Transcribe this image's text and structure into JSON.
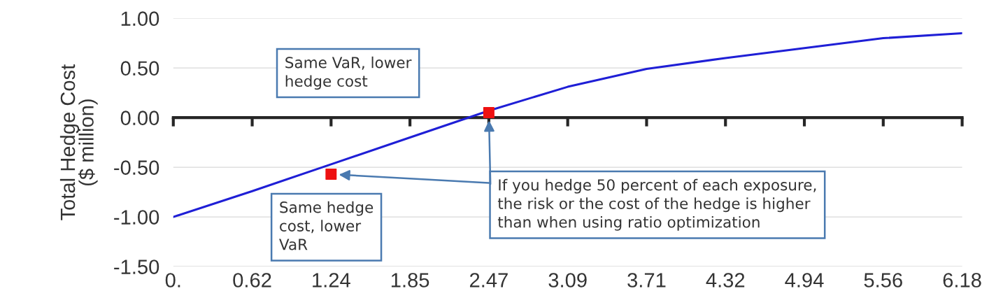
{
  "chart_data": {
    "type": "line",
    "ylabel": "Total Hedge Cost\n($ million)",
    "categories": [
      "0.",
      "0.62",
      "1.24",
      "1.85",
      "2.47",
      "3.09",
      "3.71",
      "4.32",
      "4.94",
      "5.56",
      "6.18"
    ],
    "series": [
      {
        "color": "#1f1fd6",
        "values": [
          -1.0,
          -0.74,
          -0.47,
          -0.2,
          0.07,
          0.31,
          0.49,
          0.6,
          0.7,
          0.8,
          0.85
        ]
      },
      {
        "type": "scatter",
        "marker": "square",
        "color": "#ee1111",
        "x": [
          "1.24",
          "2.47"
        ],
        "values": [
          -0.57,
          0.05
        ]
      }
    ],
    "ylim": [
      -1.5,
      1.0
    ],
    "yticks": [
      {
        "value": -1.5,
        "label": "-1.50"
      },
      {
        "value": -1.0,
        "label": "-1.00"
      },
      {
        "value": -0.5,
        "label": "-0.50"
      },
      {
        "value": 0,
        "label": "0.00"
      },
      {
        "value": 0.5,
        "label": "0.50"
      },
      {
        "value": 1.0,
        "label": "1.00"
      }
    ],
    "grid": "y",
    "legend": false,
    "annotations": [
      "Same VaR, lower\nhedge cost",
      "Same hedge\ncost, lower\nVaR",
      "If you hedge 50 percent of each exposure,\nthe risk or the cost of the hedge is higher\nthan when using ratio optimization"
    ]
  }
}
